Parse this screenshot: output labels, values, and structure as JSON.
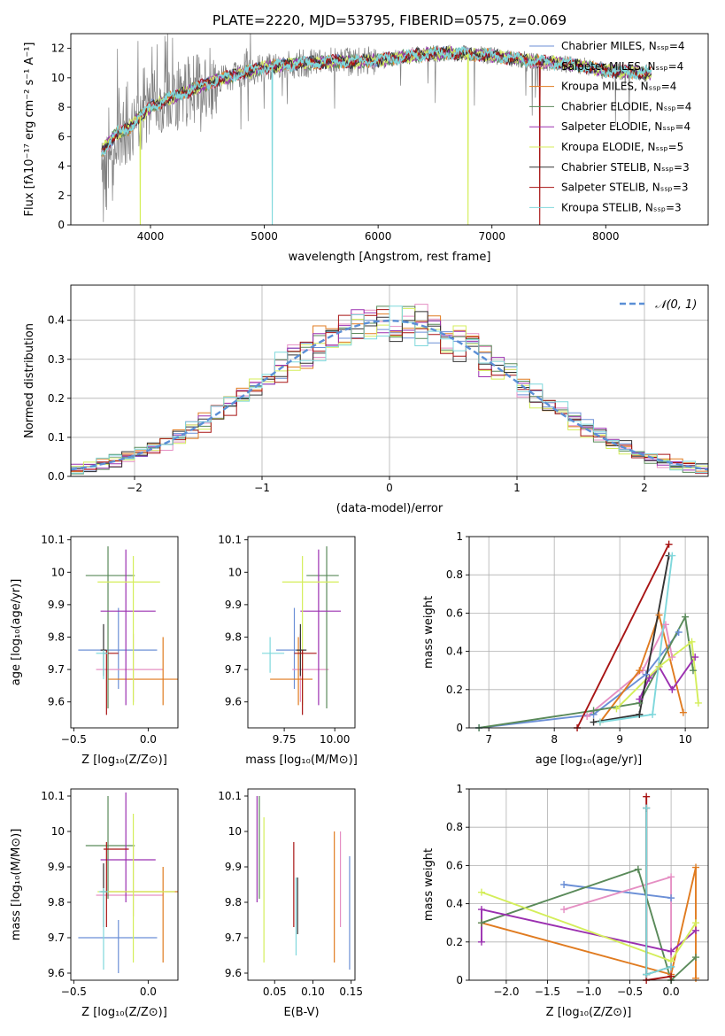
{
  "figure_title": "PLATE=2220, MJD=53795, FIBERID=0575, z=0.069",
  "colors": {
    "chabrier_miles": "#6b8fd6",
    "salpeter_miles": "#e58fc3",
    "kroupa_miles": "#e07b20",
    "chabrier_elodie": "#5a8a5a",
    "salpeter_elodie": "#9b30b0",
    "kroupa_elodie": "#d4ee5a",
    "chabrier_stelib": "#333333",
    "salpeter_stelib": "#a81414",
    "kroupa_stelib": "#7fd8dc",
    "data": "#808080",
    "gaussian": "#5b8fd6",
    "grid": "#b0b0b0"
  },
  "chart_data": [
    {
      "id": "spectrum",
      "type": "line",
      "xlabel": "wavelength [Angstrom, rest frame]",
      "ylabel": "Flux [fλ10⁻¹⁷ erg cm⁻² s⁻¹ A⁻¹]",
      "xlim": [
        3300,
        8900
      ],
      "ylim": [
        0,
        13
      ],
      "xticks": [
        4000,
        5000,
        6000,
        7000,
        8000
      ],
      "yticks": [
        0,
        2,
        4,
        6,
        8,
        10,
        12
      ],
      "grid": false,
      "legend_position": "right",
      "legend": [
        "Chabrier MILES, Nₛₛₚ=4",
        "Salpeter MILES, Nₛₛₚ=4",
        "Kroupa MILES, Nₛₛₚ=4",
        "Chabrier ELODIE, Nₛₛₚ=4",
        "Salpeter ELODIE, Nₛₛₚ=4",
        "Kroupa ELODIE, Nₛₛₚ=5",
        "Chabrier STELIB, Nₛₛₚ=3",
        "Salpeter STELIB, Nₛₛₚ=3",
        "Kroupa STELIB, Nₛₛₚ=3"
      ],
      "continuum": {
        "x": [
          3570,
          3700,
          3800,
          3900,
          4000,
          4100,
          4200,
          4400,
          4600,
          4800,
          5000,
          5200,
          5400,
          5600,
          5800,
          6000,
          6200,
          6400,
          6600,
          6800,
          7000,
          7200,
          7400,
          7600,
          7800,
          8000,
          8200,
          8400
        ],
        "y": [
          5.0,
          6.2,
          6.5,
          7.3,
          8.0,
          8.4,
          8.7,
          9.3,
          9.9,
          10.3,
          10.7,
          10.9,
          11.0,
          11.1,
          11.1,
          11.2,
          11.4,
          11.6,
          11.7,
          11.6,
          11.5,
          11.3,
          11.1,
          11.0,
          10.8,
          10.5,
          10.4,
          10.3
        ]
      },
      "spikes": [
        {
          "x": 3910,
          "y": 0,
          "color": "kroupa_elodie"
        },
        {
          "x": 5070,
          "y": 0,
          "color": "kroupa_stelib"
        },
        {
          "x": 6790,
          "y": 0,
          "color": "kroupa_elodie"
        },
        {
          "x": 7420,
          "y": 0,
          "color": "salpeter_stelib"
        }
      ]
    },
    {
      "id": "residuals",
      "type": "histogram",
      "xlabel": "(data-model)/error",
      "ylabel": "Normed distribution",
      "xlim": [
        -2.5,
        2.5
      ],
      "ylim": [
        0,
        0.49
      ],
      "xticks": [
        -2,
        -1,
        0,
        1,
        2
      ],
      "xtick_labels": [
        "−2",
        "−1",
        "0",
        "1",
        "2"
      ],
      "yticks": [
        0.0,
        0.1,
        0.2,
        0.3,
        0.4
      ],
      "yticklabels": [
        "0.0",
        "0.1",
        "0.2",
        "0.3",
        "0.4"
      ],
      "grid": true,
      "legend_position": "top-right",
      "gaussian_label": "𝒩(0, 1)",
      "bin_width": 0.1,
      "bin_start": -2.5
    },
    {
      "id": "age-vs-z",
      "type": "errorbar",
      "xlabel": "Z [log₁₀(Z/Z⊙)]",
      "ylabel": "age  [log₁₀(age/yr)]",
      "xlim": [
        -0.52,
        0.2
      ],
      "ylim": [
        9.52,
        10.11
      ],
      "xticks": [
        -0.5,
        0.0
      ],
      "xtick_labels": [
        "−0.5",
        "0.0"
      ],
      "yticks": [
        9.6,
        9.7,
        9.8,
        9.9,
        10.0,
        10.1
      ],
      "grid": false,
      "points": [
        {
          "s": "chabrier_miles",
          "x": -0.2,
          "xerr": [
            0.27,
            0.26
          ],
          "y": 9.76,
          "yerr": [
            0.12,
            0.13
          ]
        },
        {
          "s": "salpeter_miles",
          "x": -0.1,
          "xerr": [
            0.25,
            0.2
          ],
          "y": 9.7,
          "yerr": [
            0.1,
            0.11
          ]
        },
        {
          "s": "kroupa_miles",
          "x": 0.1,
          "xerr": [
            0.37,
            0.1
          ],
          "y": 9.67,
          "yerr": [
            0.08,
            0.13
          ]
        },
        {
          "s": "chabrier_elodie",
          "x": -0.27,
          "xerr": [
            0.15,
            0.18
          ],
          "y": 9.99,
          "yerr": [
            0.41,
            0.09
          ]
        },
        {
          "s": "salpeter_elodie",
          "x": -0.15,
          "xerr": [
            0.17,
            0.2
          ],
          "y": 9.88,
          "yerr": [
            0.29,
            0.19
          ]
        },
        {
          "s": "kroupa_elodie",
          "x": -0.1,
          "xerr": [
            0.24,
            0.18
          ],
          "y": 9.97,
          "yerr": [
            0.38,
            0.08
          ]
        },
        {
          "s": "chabrier_stelib",
          "x": -0.3,
          "xerr": [
            0.02,
            0.02
          ],
          "y": 9.76,
          "yerr": [
            0.08,
            0.08
          ]
        },
        {
          "s": "salpeter_stelib",
          "x": -0.28,
          "xerr": [
            0.02,
            0.08
          ],
          "y": 9.75,
          "yerr": [
            0.19,
            0.01
          ]
        },
        {
          "s": "kroupa_stelib",
          "x": -0.3,
          "xerr": [
            0.05,
            0.03
          ],
          "y": 9.75,
          "yerr": [
            0.08,
            0.01
          ]
        }
      ]
    },
    {
      "id": "age-vs-mass",
      "type": "errorbar",
      "xlabel": "mass [log₁₀(M/M⊙)]",
      "xlim": [
        9.57,
        10.1
      ],
      "ylim": [
        9.52,
        10.11
      ],
      "xticks": [
        9.75,
        10.0
      ],
      "xtick_labels": [
        "9.75",
        "10.00"
      ],
      "yticks": [
        9.6,
        9.7,
        9.8,
        9.9,
        10.0,
        10.1
      ],
      "grid": false,
      "points": [
        {
          "s": "chabrier_miles",
          "x": 9.8,
          "xerr": [
            0.09,
            0.05
          ],
          "y": 9.76,
          "yerr": [
            0.12,
            0.13
          ]
        },
        {
          "s": "salpeter_miles",
          "x": 9.83,
          "xerr": [
            0.04,
            0.14
          ],
          "y": 9.7,
          "yerr": [
            0.1,
            0.11
          ]
        },
        {
          "s": "kroupa_miles",
          "x": 9.82,
          "xerr": [
            0.14,
            0.07
          ],
          "y": 9.67,
          "yerr": [
            0.08,
            0.13
          ]
        },
        {
          "s": "chabrier_elodie",
          "x": 9.96,
          "xerr": [
            0.1,
            0.06
          ],
          "y": 9.99,
          "yerr": [
            0.41,
            0.09
          ]
        },
        {
          "s": "salpeter_elodie",
          "x": 9.92,
          "xerr": [
            0.09,
            0.11
          ],
          "y": 9.88,
          "yerr": [
            0.29,
            0.19
          ]
        },
        {
          "s": "kroupa_elodie",
          "x": 9.84,
          "xerr": [
            0.1,
            0.18
          ],
          "y": 9.97,
          "yerr": [
            0.38,
            0.08
          ]
        },
        {
          "s": "chabrier_stelib",
          "x": 9.83,
          "xerr": [
            0.02,
            0.03
          ],
          "y": 9.76,
          "yerr": [
            0.08,
            0.08
          ]
        },
        {
          "s": "salpeter_stelib",
          "x": 9.84,
          "xerr": [
            0.04,
            0.07
          ],
          "y": 9.75,
          "yerr": [
            0.19,
            0.01
          ]
        },
        {
          "s": "kroupa_stelib",
          "x": 9.68,
          "xerr": [
            0.04,
            0.07
          ],
          "y": 9.75,
          "yerr": [
            0.06,
            0.05
          ]
        }
      ]
    },
    {
      "id": "weight-vs-age",
      "type": "line",
      "xlabel": "age  [log₁₀(age/yr)]",
      "ylabel": "mass weight",
      "xlim": [
        6.7,
        10.35
      ],
      "ylim": [
        0,
        1
      ],
      "xticks": [
        7,
        8,
        9,
        10
      ],
      "yticks": [
        0.0,
        0.2,
        0.4,
        0.6,
        0.8,
        1.0
      ],
      "grid": true,
      "series": [
        {
          "s": "chabrier_miles",
          "points": [
            [
              6.85,
              0.0
            ],
            [
              8.6,
              0.07
            ],
            [
              9.4,
              0.28
            ],
            [
              9.9,
              0.5
            ]
          ]
        },
        {
          "s": "salpeter_miles",
          "points": [
            [
              8.5,
              0.06
            ],
            [
              9.35,
              0.3
            ],
            [
              9.7,
              0.54
            ],
            [
              9.8,
              0.37
            ]
          ]
        },
        {
          "s": "kroupa_miles",
          "points": [
            [
              8.7,
              0.03
            ],
            [
              9.3,
              0.3
            ],
            [
              9.6,
              0.59
            ],
            [
              9.97,
              0.08
            ]
          ]
        },
        {
          "s": "chabrier_elodie",
          "points": [
            [
              6.85,
              0.0
            ],
            [
              8.6,
              0.09
            ],
            [
              9.3,
              0.13
            ],
            [
              10.0,
              0.58
            ],
            [
              10.12,
              0.3
            ]
          ]
        },
        {
          "s": "salpeter_elodie",
          "points": [
            [
              9.3,
              0.15
            ],
            [
              9.45,
              0.26
            ],
            [
              9.6,
              0.32
            ],
            [
              9.8,
              0.2
            ],
            [
              10.15,
              0.37
            ]
          ]
        },
        {
          "s": "kroupa_elodie",
          "points": [
            [
              8.95,
              0.1
            ],
            [
              9.6,
              0.32
            ],
            [
              10.1,
              0.45
            ],
            [
              10.2,
              0.13
            ]
          ]
        },
        {
          "s": "chabrier_stelib",
          "points": [
            [
              8.6,
              0.03
            ],
            [
              9.3,
              0.07
            ],
            [
              9.75,
              0.9
            ]
          ]
        },
        {
          "s": "salpeter_stelib",
          "points": [
            [
              8.35,
              0.0
            ],
            [
              9.75,
              0.96
            ]
          ]
        },
        {
          "s": "kroupa_stelib",
          "points": [
            [
              8.7,
              0.03
            ],
            [
              9.5,
              0.07
            ],
            [
              9.8,
              0.9
            ]
          ]
        }
      ]
    },
    {
      "id": "mass-vs-z",
      "type": "errorbar",
      "xlabel": "Z [log₁₀(Z/Z⊙)]",
      "ylabel": "mass [log₁₀(M/M⊙)]",
      "xlim": [
        -0.52,
        0.2
      ],
      "ylim": [
        9.58,
        10.12
      ],
      "xticks": [
        -0.5,
        0.0
      ],
      "xtick_labels": [
        "−0.5",
        "0.0"
      ],
      "yticks": [
        9.6,
        9.7,
        9.8,
        9.9,
        10.0,
        10.1
      ],
      "grid": false,
      "points": [
        {
          "s": "chabrier_miles",
          "x": -0.2,
          "xerr": [
            0.27,
            0.26
          ],
          "y": 9.7,
          "yerr": [
            0.1,
            0.05
          ]
        },
        {
          "s": "salpeter_miles",
          "x": -0.1,
          "xerr": [
            0.25,
            0.2
          ],
          "y": 9.82,
          "yerr": [
            0.06,
            0.14
          ]
        },
        {
          "s": "kroupa_miles",
          "x": 0.1,
          "xerr": [
            0.37,
            0.1
          ],
          "y": 9.83,
          "yerr": [
            0.2,
            0.07
          ]
        },
        {
          "s": "chabrier_elodie",
          "x": -0.27,
          "xerr": [
            0.15,
            0.18
          ],
          "y": 9.96,
          "yerr": [
            0.15,
            0.14
          ]
        },
        {
          "s": "salpeter_elodie",
          "x": -0.15,
          "xerr": [
            0.17,
            0.2
          ],
          "y": 9.92,
          "yerr": [
            0.12,
            0.19
          ]
        },
        {
          "s": "kroupa_elodie",
          "x": -0.1,
          "xerr": [
            0.24,
            0.28
          ],
          "y": 9.83,
          "yerr": [
            0.2,
            0.22
          ]
        },
        {
          "s": "chabrier_stelib",
          "x": -0.3,
          "xerr": [
            0.02,
            0.02
          ],
          "y": 9.83,
          "yerr": [
            0.1,
            0.08
          ]
        },
        {
          "s": "salpeter_stelib",
          "x": -0.28,
          "xerr": [
            0.02,
            0.15
          ],
          "y": 9.95,
          "yerr": [
            0.22,
            0.02
          ]
        },
        {
          "s": "kroupa_stelib",
          "x": -0.3,
          "xerr": [
            0.03,
            0.03
          ],
          "y": 9.83,
          "yerr": [
            0.22,
            0.01
          ]
        }
      ]
    },
    {
      "id": "mass-vs-ebv",
      "type": "errorbar",
      "xlabel": "E(B-V)",
      "xlim": [
        0.015,
        0.155
      ],
      "ylim": [
        9.58,
        10.12
      ],
      "xticks": [
        0.05,
        0.1,
        0.15
      ],
      "xtick_labels": [
        "0.05",
        "0.10",
        "0.15"
      ],
      "yticks": [
        9.6,
        9.7,
        9.8,
        9.9,
        10.0,
        10.1
      ],
      "grid": false,
      "points": [
        {
          "s": "salpeter_elodie",
          "x": 0.027,
          "y": 9.95,
          "yerr": [
            0.15,
            0.15
          ]
        },
        {
          "s": "chabrier_elodie",
          "x": 0.03,
          "y": 9.95,
          "yerr": [
            0.14,
            0.15
          ]
        },
        {
          "s": "kroupa_elodie",
          "x": 0.036,
          "y": 9.82,
          "yerr": [
            0.19,
            0.22
          ]
        },
        {
          "s": "salpeter_stelib",
          "x": 0.075,
          "y": 9.84,
          "yerr": [
            0.11,
            0.13
          ]
        },
        {
          "s": "kroupa_stelib",
          "x": 0.078,
          "y": 9.78,
          "yerr": [
            0.13,
            0.09
          ]
        },
        {
          "s": "chabrier_stelib",
          "x": 0.08,
          "y": 9.8,
          "yerr": [
            0.09,
            0.07
          ]
        },
        {
          "s": "kroupa_miles",
          "x": 0.128,
          "y": 9.82,
          "yerr": [
            0.19,
            0.18
          ]
        },
        {
          "s": "salpeter_miles",
          "x": 0.136,
          "y": 9.85,
          "yerr": [
            0.12,
            0.15
          ]
        },
        {
          "s": "chabrier_miles",
          "x": 0.148,
          "y": 9.77,
          "yerr": [
            0.16,
            0.16
          ]
        }
      ]
    },
    {
      "id": "weight-vs-z",
      "type": "line",
      "xlabel": "Z [log₁₀(Z/Z⊙)]",
      "ylabel": "mass weight",
      "xlim": [
        -2.45,
        0.45
      ],
      "ylim": [
        0,
        1
      ],
      "xticks": [
        -2.0,
        -1.5,
        -1.0,
        -0.5,
        0.0
      ],
      "xtick_labels": [
        "−2.0",
        "−1.5",
        "−1.0",
        "−0.5",
        "0.0"
      ],
      "yticks": [
        0.0,
        0.2,
        0.4,
        0.6,
        0.8,
        1.0
      ],
      "grid": true,
      "series": [
        {
          "s": "chabrier_miles",
          "points": [
            [
              -1.3,
              0.5
            ],
            [
              0.0,
              0.43
            ]
          ]
        },
        {
          "s": "salpeter_miles",
          "points": [
            [
              -1.3,
              0.37
            ],
            [
              0.0,
              0.54
            ],
            [
              0.0,
              0.03
            ]
          ]
        },
        {
          "s": "kroupa_miles",
          "points": [
            [
              -2.3,
              0.3
            ],
            [
              0.0,
              0.03
            ],
            [
              0.3,
              0.59
            ],
            [
              0.3,
              0.01
            ]
          ]
        },
        {
          "s": "chabrier_elodie",
          "points": [
            [
              -2.3,
              0.3
            ],
            [
              -0.4,
              0.58
            ],
            [
              0.0,
              0.0
            ],
            [
              0.3,
              0.12
            ]
          ]
        },
        {
          "s": "salpeter_elodie",
          "points": [
            [
              -2.3,
              0.2
            ],
            [
              -2.3,
              0.37
            ],
            [
              0.0,
              0.15
            ],
            [
              0.3,
              0.26
            ]
          ]
        },
        {
          "s": "kroupa_elodie",
          "points": [
            [
              -2.3,
              0.46
            ],
            [
              0.0,
              0.1
            ],
            [
              0.3,
              0.3
            ]
          ]
        },
        {
          "s": "chabrier_stelib",
          "points": [
            [
              -0.3,
              0.9
            ],
            [
              -0.3,
              0.03
            ],
            [
              0.0,
              0.07
            ]
          ]
        },
        {
          "s": "salpeter_stelib",
          "points": [
            [
              -0.3,
              0.96
            ],
            [
              -0.3,
              0.0
            ],
            [
              0.0,
              0.02
            ]
          ]
        },
        {
          "s": "kroupa_stelib",
          "points": [
            [
              -0.3,
              0.9
            ],
            [
              -0.3,
              0.03
            ],
            [
              0.0,
              0.07
            ]
          ]
        }
      ]
    }
  ]
}
